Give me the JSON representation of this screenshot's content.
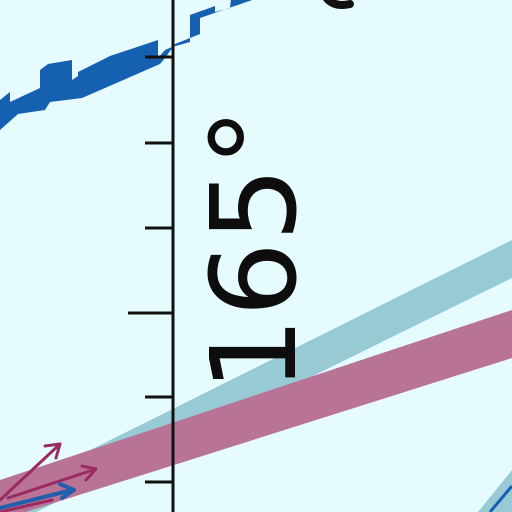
{
  "map": {
    "background_color": "#e6fbfd",
    "meridian": {
      "label": "165°",
      "line_color": "#111111"
    },
    "features": [
      {
        "kind": "blue-stepped-boundary",
        "color": "#1560b0"
      },
      {
        "kind": "light-blue-band",
        "color": "#98cad6"
      },
      {
        "kind": "magenta-band",
        "color": "#b97394"
      },
      {
        "kind": "arrow-cluster",
        "colors": [
          "#9b2a63",
          "#1f5fae"
        ]
      }
    ]
  }
}
